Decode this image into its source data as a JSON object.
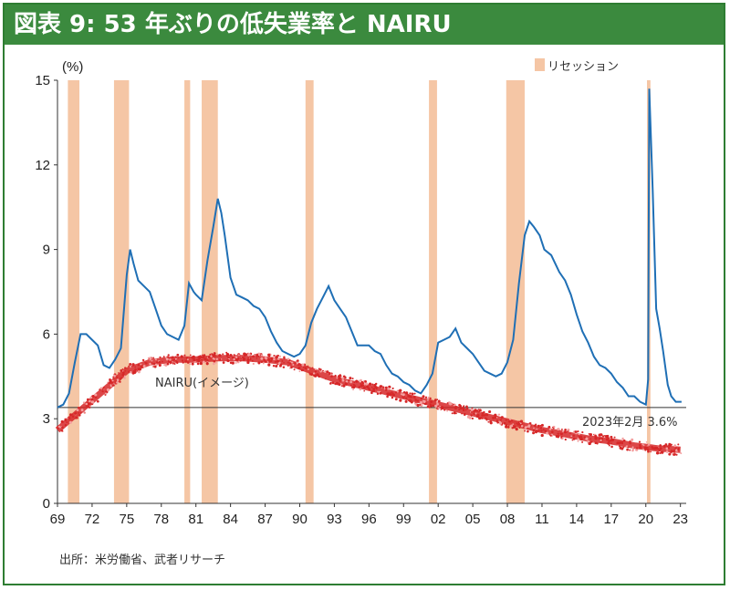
{
  "title": "図表 9: 53 年ぶりの低失業率と NAIRU",
  "source": "出所：米労働省、武者リサーチ",
  "colors": {
    "accent": "#3b8a3e",
    "unemployment": "#1f6fb5",
    "nairu": "#d62728",
    "recession": "#f5c6a5"
  },
  "chart_data": {
    "type": "line",
    "ylabel": "(%)",
    "ylim": [
      0,
      15
    ],
    "yticks": [
      "0",
      "3",
      "6",
      "9",
      "12",
      "15"
    ],
    "xlim": [
      1969,
      2023.5
    ],
    "xticks": [
      {
        "year": 1969,
        "label": "69"
      },
      {
        "year": 1972,
        "label": "72"
      },
      {
        "year": 1975,
        "label": "75"
      },
      {
        "year": 1978,
        "label": "78"
      },
      {
        "year": 1981,
        "label": "81"
      },
      {
        "year": 1984,
        "label": "84"
      },
      {
        "year": 1987,
        "label": "87"
      },
      {
        "year": 1990,
        "label": "90"
      },
      {
        "year": 1993,
        "label": "93"
      },
      {
        "year": 1996,
        "label": "96"
      },
      {
        "year": 1999,
        "label": "99"
      },
      {
        "year": 2002,
        "label": "02"
      },
      {
        "year": 2005,
        "label": "05"
      },
      {
        "year": 2008,
        "label": "08"
      },
      {
        "year": 2011,
        "label": "11"
      },
      {
        "year": 2014,
        "label": "14"
      },
      {
        "year": 2017,
        "label": "17"
      },
      {
        "year": 2020,
        "label": "20"
      },
      {
        "year": 2023,
        "label": "23"
      }
    ],
    "legend": {
      "label": "リセッション",
      "position": "top-right"
    },
    "recessions": [
      [
        1969.9,
        1970.9
      ],
      [
        1973.9,
        1975.2
      ],
      [
        1980.0,
        1980.5
      ],
      [
        1981.5,
        1982.9
      ],
      [
        1990.5,
        1991.2
      ],
      [
        2001.2,
        2001.9
      ],
      [
        2007.9,
        2009.5
      ],
      [
        2020.1,
        2020.4
      ]
    ],
    "series": [
      {
        "label": "",
        "points": [
          [
            1969.0,
            3.4
          ],
          [
            1969.5,
            3.5
          ],
          [
            1970.0,
            3.9
          ],
          [
            1970.5,
            5.0
          ],
          [
            1971.0,
            6.0
          ],
          [
            1971.5,
            6.0
          ],
          [
            1972.0,
            5.8
          ],
          [
            1972.5,
            5.6
          ],
          [
            1973.0,
            4.9
          ],
          [
            1973.5,
            4.8
          ],
          [
            1974.0,
            5.1
          ],
          [
            1974.5,
            5.5
          ],
          [
            1975.0,
            8.1
          ],
          [
            1975.3,
            9.0
          ],
          [
            1975.6,
            8.5
          ],
          [
            1976.0,
            7.9
          ],
          [
            1976.5,
            7.7
          ],
          [
            1977.0,
            7.5
          ],
          [
            1977.5,
            6.9
          ],
          [
            1978.0,
            6.3
          ],
          [
            1978.5,
            6.0
          ],
          [
            1979.0,
            5.9
          ],
          [
            1979.5,
            5.8
          ],
          [
            1980.0,
            6.3
          ],
          [
            1980.4,
            7.8
          ],
          [
            1980.8,
            7.5
          ],
          [
            1981.0,
            7.4
          ],
          [
            1981.5,
            7.2
          ],
          [
            1982.0,
            8.6
          ],
          [
            1982.5,
            9.8
          ],
          [
            1982.9,
            10.8
          ],
          [
            1983.2,
            10.3
          ],
          [
            1983.5,
            9.5
          ],
          [
            1984.0,
            8.0
          ],
          [
            1984.5,
            7.4
          ],
          [
            1985.0,
            7.3
          ],
          [
            1985.5,
            7.2
          ],
          [
            1986.0,
            7.0
          ],
          [
            1986.5,
            6.9
          ],
          [
            1987.0,
            6.6
          ],
          [
            1987.5,
            6.1
          ],
          [
            1988.0,
            5.7
          ],
          [
            1988.5,
            5.4
          ],
          [
            1989.0,
            5.3
          ],
          [
            1989.5,
            5.2
          ],
          [
            1990.0,
            5.3
          ],
          [
            1990.5,
            5.6
          ],
          [
            1991.0,
            6.4
          ],
          [
            1991.5,
            6.9
          ],
          [
            1992.0,
            7.3
          ],
          [
            1992.5,
            7.7
          ],
          [
            1993.0,
            7.2
          ],
          [
            1993.5,
            6.9
          ],
          [
            1994.0,
            6.6
          ],
          [
            1994.5,
            6.1
          ],
          [
            1995.0,
            5.6
          ],
          [
            1995.5,
            5.6
          ],
          [
            1996.0,
            5.6
          ],
          [
            1996.5,
            5.4
          ],
          [
            1997.0,
            5.3
          ],
          [
            1997.5,
            4.9
          ],
          [
            1998.0,
            4.6
          ],
          [
            1998.5,
            4.5
          ],
          [
            1999.0,
            4.3
          ],
          [
            1999.5,
            4.2
          ],
          [
            2000.0,
            4.0
          ],
          [
            2000.5,
            3.9
          ],
          [
            2001.0,
            4.2
          ],
          [
            2001.5,
            4.6
          ],
          [
            2002.0,
            5.7
          ],
          [
            2002.5,
            5.8
          ],
          [
            2003.0,
            5.9
          ],
          [
            2003.5,
            6.2
          ],
          [
            2004.0,
            5.7
          ],
          [
            2004.5,
            5.5
          ],
          [
            2005.0,
            5.3
          ],
          [
            2005.5,
            5.0
          ],
          [
            2006.0,
            4.7
          ],
          [
            2006.5,
            4.6
          ],
          [
            2007.0,
            4.5
          ],
          [
            2007.5,
            4.6
          ],
          [
            2008.0,
            5.0
          ],
          [
            2008.5,
            5.8
          ],
          [
            2009.0,
            7.8
          ],
          [
            2009.5,
            9.5
          ],
          [
            2009.9,
            10.0
          ],
          [
            2010.3,
            9.8
          ],
          [
            2010.8,
            9.5
          ],
          [
            2011.2,
            9.0
          ],
          [
            2011.8,
            8.8
          ],
          [
            2012.5,
            8.2
          ],
          [
            2013.0,
            7.9
          ],
          [
            2013.5,
            7.4
          ],
          [
            2014.0,
            6.7
          ],
          [
            2014.5,
            6.1
          ],
          [
            2015.0,
            5.7
          ],
          [
            2015.5,
            5.2
          ],
          [
            2016.0,
            4.9
          ],
          [
            2016.5,
            4.8
          ],
          [
            2017.0,
            4.6
          ],
          [
            2017.5,
            4.3
          ],
          [
            2018.0,
            4.1
          ],
          [
            2018.5,
            3.8
          ],
          [
            2019.0,
            3.8
          ],
          [
            2019.5,
            3.6
          ],
          [
            2020.0,
            3.5
          ],
          [
            2020.2,
            4.4
          ],
          [
            2020.3,
            14.7
          ],
          [
            2020.6,
            11.1
          ],
          [
            2020.9,
            6.9
          ],
          [
            2021.2,
            6.2
          ],
          [
            2021.5,
            5.4
          ],
          [
            2021.9,
            4.2
          ],
          [
            2022.2,
            3.8
          ],
          [
            2022.6,
            3.6
          ],
          [
            2023.1,
            3.6
          ]
        ]
      },
      {
        "label": "NAIRU(イメージ)",
        "points": [
          [
            1969.0,
            2.6
          ],
          [
            1971.0,
            3.3
          ],
          [
            1973.0,
            4.0
          ],
          [
            1975.0,
            4.7
          ],
          [
            1977.0,
            5.0
          ],
          [
            1979.0,
            5.1
          ],
          [
            1981.0,
            5.1
          ],
          [
            1983.0,
            5.15
          ],
          [
            1985.0,
            5.15
          ],
          [
            1987.0,
            5.1
          ],
          [
            1989.0,
            5.0
          ],
          [
            1991.0,
            4.7
          ],
          [
            1993.0,
            4.4
          ],
          [
            1995.0,
            4.2
          ],
          [
            1997.0,
            4.0
          ],
          [
            1999.0,
            3.8
          ],
          [
            2001.0,
            3.6
          ],
          [
            2003.0,
            3.4
          ],
          [
            2005.0,
            3.2
          ],
          [
            2007.0,
            3.0
          ],
          [
            2009.0,
            2.8
          ],
          [
            2011.0,
            2.6
          ],
          [
            2013.0,
            2.45
          ],
          [
            2015.0,
            2.3
          ],
          [
            2017.0,
            2.2
          ],
          [
            2019.0,
            2.05
          ],
          [
            2021.0,
            1.95
          ],
          [
            2023.0,
            1.9
          ]
        ]
      }
    ],
    "reference_line": {
      "value": 3.4,
      "label": "2023年2月 3.6%"
    }
  }
}
